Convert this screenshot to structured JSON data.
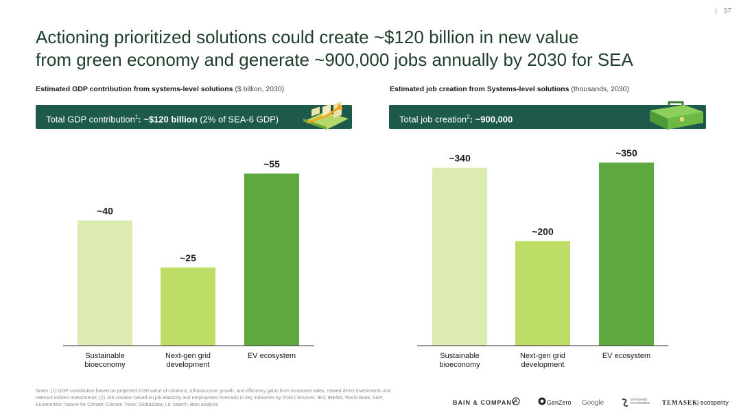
{
  "page": {
    "number": "57"
  },
  "title": {
    "line1": "Actioning prioritized solutions could create ~$120 billion in new value",
    "line2": "from green economy and generate ~900,000 jobs annually by 2030 for SEA"
  },
  "left_panel": {
    "subtitle_bold": "Estimated GDP contribution from systems-level solutions",
    "subtitle_unit": "($ billion, 2030)",
    "banner_prefix": "Total GDP contribution",
    "banner_sup": "1",
    "banner_value": ": ~$120 billion",
    "banner_suffix": " (2% of SEA-6 GDP)",
    "banner_icon": "money-stack-growth-icon"
  },
  "right_panel": {
    "subtitle_bold": "Estimated job creation from Systems-level solutions",
    "subtitle_unit": "(thousands, 2030)",
    "banner_prefix": "Total job creation",
    "banner_sup": "2",
    "banner_value": ": ~900,000",
    "banner_icon": "briefcase-icon"
  },
  "chart_data": [
    {
      "type": "bar",
      "title": "Estimated GDP contribution from systems-level solutions",
      "unit": "$ billion, 2030",
      "categories": [
        "Sustainable bioeconomy",
        "Next-gen grid development",
        "EV ecosystem"
      ],
      "category_lines": [
        [
          "Sustainable",
          "bioeconomy"
        ],
        [
          "Next-gen grid",
          "development"
        ],
        [
          "EV ecosystem"
        ]
      ],
      "values": [
        40,
        25,
        55
      ],
      "data_labels": [
        "~40",
        "~25",
        "~55"
      ],
      "colors": [
        "#dcebb0",
        "#bedd66",
        "#5ea93f"
      ],
      "ylim": [
        0,
        60
      ],
      "grid": false
    },
    {
      "type": "bar",
      "title": "Estimated job creation from Systems-level solutions",
      "unit": "thousands, 2030",
      "categories": [
        "Sustainable bioeconomy",
        "Next-gen grid development",
        "EV ecosystem"
      ],
      "category_lines": [
        [
          "Sustainable",
          "bioeconomy"
        ],
        [
          "Next-gen grid",
          "development"
        ],
        [
          "EV ecosystem"
        ]
      ],
      "values": [
        340,
        200,
        350
      ],
      "data_labels": [
        "~340",
        "~200",
        "~350"
      ],
      "colors": [
        "#dcebb0",
        "#bedd66",
        "#5ea93f"
      ],
      "ylim": [
        0,
        360
      ],
      "grid": false
    }
  ],
  "notes": "Notes: (1) GDP contribution based on projected 2030 value of solutions, infrastructure growth, and efficiency gains from increased sales, related direct investments and relevant indirect investments; (2) Job creation based on job elasticity and employment forecasts in key industries by 2030 | Sources: IEA; IRENA; World Bank; S&P; Euromonitor; Nature for Climate; Climate Trace; GlobalData; Lit. search; Bain analysis",
  "logos": [
    "BAIN & COMPANY",
    "GenZero",
    "Google",
    "STANDARD CHARTERED",
    "TEMASEK",
    "ecosperity"
  ]
}
